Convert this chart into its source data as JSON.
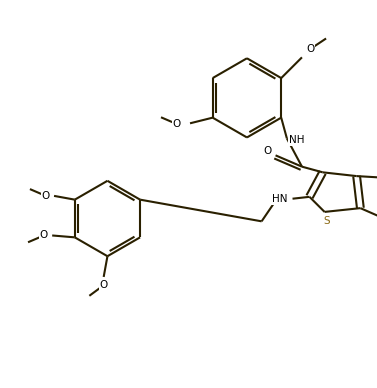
{
  "background_color": "#ffffff",
  "line_color": "#2a2000",
  "line_width": 1.5,
  "figsize": [
    3.77,
    3.88
  ],
  "dpi": 100,
  "S_color": "#8B6914",
  "label_fontsize": 7.5,
  "xlim": [
    0,
    10
  ],
  "ylim": [
    0,
    10
  ]
}
